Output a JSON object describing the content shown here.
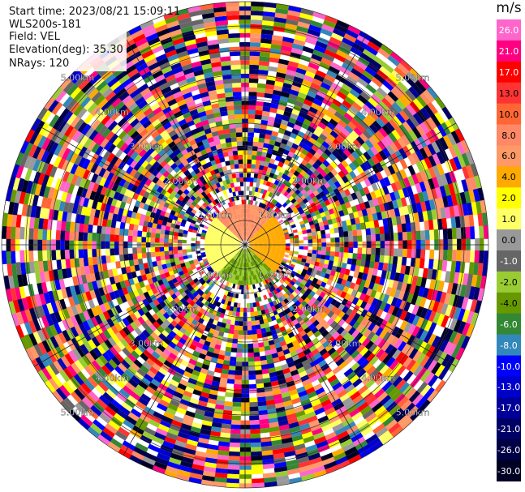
{
  "info": {
    "start_time": "Start time: 2023/08/21 15:09:11",
    "instrument": "WLS200s-181",
    "field": "Field: VEL",
    "elevation": "Elevation(deg): 35.30",
    "nrays": "NRays: 120"
  },
  "chart_data": {
    "type": "heatmap",
    "projection": "polar-ppi",
    "field": "VEL",
    "units": "m/s",
    "elevation_deg": 35.3,
    "nrays": 120,
    "range_ring_labels": [
      "1.00km",
      "2.00km",
      "3.00km",
      "4.00km",
      "5.00km"
    ],
    "colorbar": {
      "title": "m/s",
      "ticks": [
        "26.0",
        "21.0",
        "17.0",
        "13.0",
        "10.0",
        "8.0",
        "6.0",
        "4.0",
        "2.0",
        "1.0",
        "0.0",
        "-1.0",
        "-2.0",
        "-4.0",
        "-6.0",
        "-8.0",
        "-10.0",
        "-13.0",
        "-17.0",
        "-21.0",
        "-26.0",
        "-30.0"
      ],
      "colors": [
        "#ff66cc",
        "#ff0080",
        "#ff0000",
        "#ff3333",
        "#ff6633",
        "#ff8866",
        "#ff9966",
        "#ffaa00",
        "#ffff00",
        "#ffff66",
        "#999999",
        "#666666",
        "#99cc33",
        "#669900",
        "#338833",
        "#3388bb",
        "#0000ff",
        "#0000cc",
        "#000099",
        "#000066",
        "#000044",
        "#000022"
      ]
    },
    "near_field": [
      {
        "sector": "north",
        "value_range": [
          4.0,
          8.0
        ]
      },
      {
        "sector": "east",
        "value_range": [
          2.0,
          4.0
        ]
      },
      {
        "sector": "south",
        "value_range": [
          -6.0,
          -2.0
        ]
      },
      {
        "sector": "west",
        "value_range": [
          0.0,
          1.0
        ]
      }
    ]
  }
}
